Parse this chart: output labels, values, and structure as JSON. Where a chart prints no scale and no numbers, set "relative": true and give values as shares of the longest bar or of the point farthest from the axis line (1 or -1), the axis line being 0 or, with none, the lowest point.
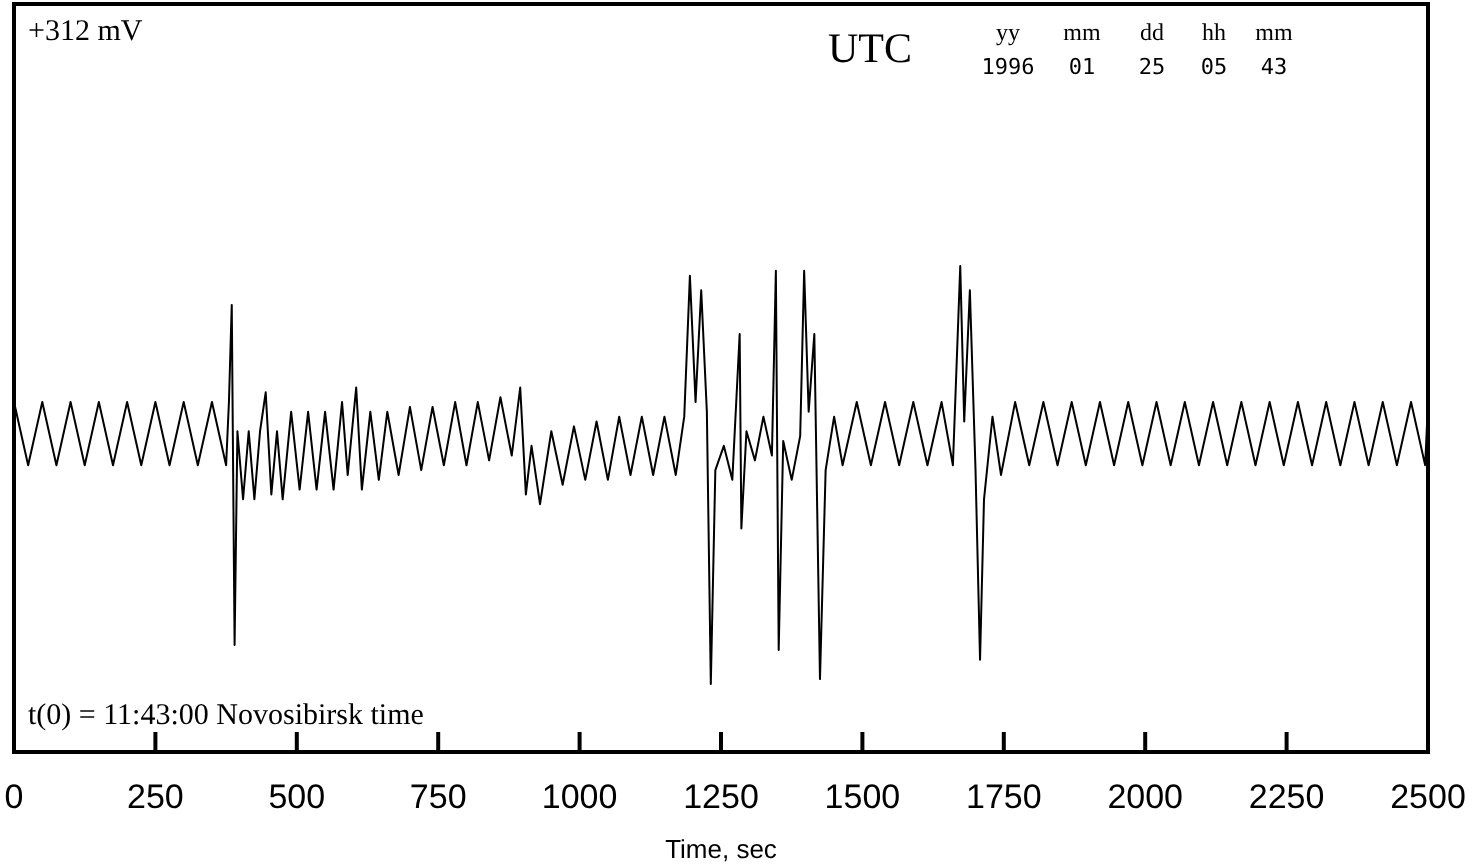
{
  "chart_data": {
    "type": "line",
    "relative": true,
    "xlabel": "Time, sec",
    "xlim": [
      0,
      2500
    ],
    "xticks": [
      0,
      250,
      500,
      750,
      1000,
      1250,
      1500,
      1750,
      2000,
      2250,
      2500
    ],
    "tick_labels": "x",
    "grid": false,
    "marker": "none",
    "line_style": "solid",
    "annotations": [
      "+312 mV",
      "t(0) = 11:43:00 Novosibirsk time",
      "UTC",
      "yy",
      "1996",
      "mm",
      "01",
      "dd",
      "25",
      "hh",
      "05",
      "mm",
      "43"
    ],
    "series": [
      {
        "color": "#000000",
        "x": [
          0,
          25,
          50,
          75,
          100,
          125,
          150,
          175,
          200,
          225,
          250,
          275,
          300,
          325,
          350,
          375,
          380,
          385,
          390,
          395,
          405,
          415,
          425,
          435,
          445,
          455,
          465,
          475,
          490,
          505,
          520,
          535,
          550,
          565,
          580,
          590,
          605,
          615,
          630,
          645,
          660,
          680,
          700,
          720,
          740,
          760,
          780,
          800,
          820,
          840,
          860,
          880,
          895,
          905,
          915,
          930,
          950,
          970,
          990,
          1010,
          1030,
          1050,
          1070,
          1090,
          1110,
          1130,
          1150,
          1170,
          1185,
          1195,
          1205,
          1215,
          1225,
          1232,
          1240,
          1255,
          1270,
          1283,
          1286,
          1295,
          1310,
          1325,
          1340,
          1347,
          1352,
          1360,
          1375,
          1390,
          1397,
          1405,
          1415,
          1425,
          1435,
          1450,
          1465,
          1490,
          1515,
          1540,
          1565,
          1590,
          1615,
          1640,
          1660,
          1673,
          1680,
          1690,
          1700,
          1708,
          1715,
          1730,
          1745,
          1770,
          1795,
          1820,
          1845,
          1870,
          1895,
          1920,
          1945,
          1970,
          1995,
          2020,
          2045,
          2070,
          2095,
          2120,
          2145,
          2170,
          2195,
          2220,
          2245,
          2270,
          2295,
          2320,
          2345,
          2370,
          2395,
          2420,
          2445,
          2470,
          2495,
          2500
        ],
        "values": [
          0.72,
          0.59,
          0.72,
          0.59,
          0.72,
          0.59,
          0.72,
          0.59,
          0.72,
          0.59,
          0.72,
          0.59,
          0.72,
          0.59,
          0.72,
          0.59,
          0.72,
          0.92,
          0.22,
          0.66,
          0.52,
          0.66,
          0.52,
          0.66,
          0.74,
          0.53,
          0.66,
          0.52,
          0.7,
          0.54,
          0.7,
          0.54,
          0.7,
          0.54,
          0.72,
          0.57,
          0.75,
          0.54,
          0.7,
          0.56,
          0.7,
          0.57,
          0.71,
          0.58,
          0.71,
          0.59,
          0.72,
          0.59,
          0.72,
          0.6,
          0.73,
          0.61,
          0.75,
          0.53,
          0.63,
          0.51,
          0.66,
          0.55,
          0.67,
          0.56,
          0.68,
          0.56,
          0.69,
          0.57,
          0.69,
          0.57,
          0.69,
          0.57,
          0.69,
          0.98,
          0.72,
          0.95,
          0.7,
          0.14,
          0.58,
          0.63,
          0.56,
          0.86,
          0.46,
          0.66,
          0.6,
          0.69,
          0.61,
          0.99,
          0.21,
          0.64,
          0.56,
          0.65,
          0.99,
          0.7,
          0.86,
          0.15,
          0.58,
          0.69,
          0.59,
          0.72,
          0.59,
          0.72,
          0.59,
          0.72,
          0.59,
          0.72,
          0.59,
          1.0,
          0.68,
          0.95,
          0.58,
          0.19,
          0.52,
          0.69,
          0.57,
          0.72,
          0.59,
          0.72,
          0.59,
          0.72,
          0.59,
          0.72,
          0.59,
          0.72,
          0.59,
          0.72,
          0.59,
          0.72,
          0.59,
          0.72,
          0.59,
          0.72,
          0.59,
          0.72,
          0.59,
          0.72,
          0.59,
          0.72,
          0.59,
          0.72,
          0.59,
          0.72,
          0.59,
          0.72,
          0.59,
          0.72
        ]
      }
    ]
  }
}
